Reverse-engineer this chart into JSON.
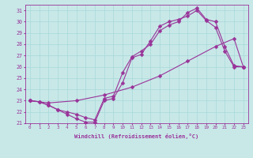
{
  "xlabel": "Windchill (Refroidissement éolien,°C)",
  "xlim": [
    -0.5,
    23.5
  ],
  "ylim": [
    21,
    31.5
  ],
  "yticks": [
    21,
    22,
    23,
    24,
    25,
    26,
    27,
    28,
    29,
    30,
    31
  ],
  "xticks": [
    0,
    1,
    2,
    3,
    4,
    5,
    6,
    7,
    8,
    9,
    10,
    11,
    12,
    13,
    14,
    15,
    16,
    17,
    18,
    19,
    20,
    21,
    22,
    23
  ],
  "bg_color": "#c8e8e8",
  "grid_color": "#a8d8d8",
  "line_color": "#993399",
  "line1_x": [
    0,
    1,
    2,
    3,
    4,
    5,
    6,
    7,
    8,
    9,
    10,
    11,
    12,
    13,
    14,
    15,
    16,
    17,
    18,
    19,
    20,
    21,
    22,
    23
  ],
  "line1_y": [
    23.0,
    22.9,
    22.6,
    22.2,
    21.8,
    21.4,
    21.1,
    21.1,
    23.0,
    23.2,
    24.6,
    26.8,
    27.1,
    28.3,
    29.6,
    30.0,
    30.2,
    30.5,
    31.0,
    30.1,
    29.5,
    27.4,
    26.0,
    26.0
  ],
  "line2_x": [
    0,
    2,
    5,
    8,
    11,
    14,
    17,
    20,
    22,
    23
  ],
  "line2_y": [
    23.0,
    22.8,
    23.0,
    23.5,
    24.2,
    25.2,
    26.5,
    27.8,
    28.5,
    26.0
  ],
  "line3_x": [
    0,
    1,
    2,
    3,
    4,
    5,
    6,
    7,
    8,
    9,
    10,
    11,
    12,
    13,
    14,
    15,
    16,
    17,
    18,
    19,
    20,
    21,
    22,
    23
  ],
  "line3_y": [
    23.0,
    22.9,
    22.6,
    22.2,
    22.0,
    21.8,
    21.5,
    21.3,
    23.2,
    23.4,
    25.5,
    26.9,
    27.4,
    28.0,
    29.2,
    29.7,
    30.0,
    30.8,
    31.2,
    30.2,
    30.0,
    27.8,
    26.1,
    26.0
  ]
}
